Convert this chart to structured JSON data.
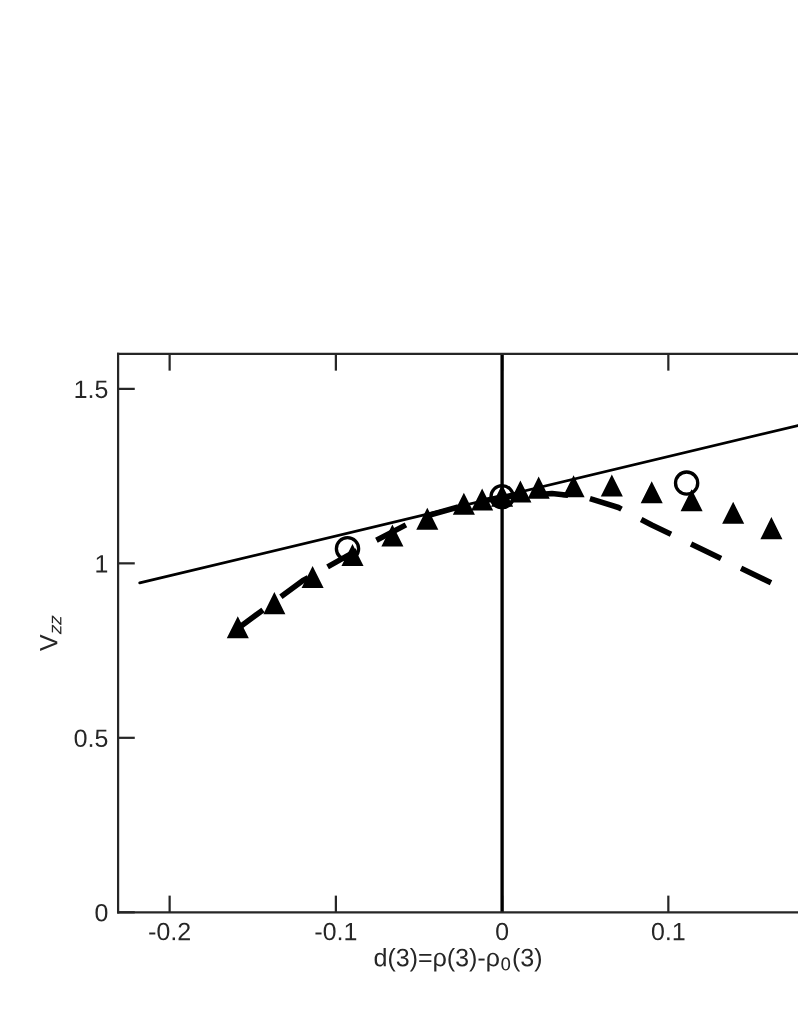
{
  "chart_data": {
    "type": "line",
    "xlabel": "d(3)=ρ(3)-ρ$_{0}$(3)",
    "ylabel": "V$_{zz}$",
    "xlim": [
      -0.231,
      0.178
    ],
    "ylim": [
      0,
      1.6
    ],
    "xticks": [
      -0.2,
      -0.1,
      0,
      0.1
    ],
    "yticks": [
      0,
      0.5,
      1,
      1.5
    ],
    "grid": false,
    "legend": false,
    "ref_lines": [
      {
        "axis": "x",
        "value": 0,
        "color": "#000000"
      }
    ],
    "series": [
      {
        "color": "#000000",
        "line_style": "solid",
        "marker": "none",
        "x": [
          -0.218,
          0.178
        ],
        "values": [
          0.944,
          1.395
        ]
      },
      {
        "color": "#000000",
        "line_style": "dashed",
        "marker": "none",
        "x": [
          -0.16,
          -0.12,
          -0.09,
          -0.05,
          -0.02,
          0,
          0.03,
          0.05,
          0.07,
          0.09,
          0.123,
          0.162
        ],
        "values": [
          0.81,
          0.95,
          1.03,
          1.13,
          1.17,
          1.19,
          1.2,
          1.19,
          1.16,
          1.11,
          1.034,
          0.944
        ]
      },
      {
        "type": "scatter",
        "color": "#000000",
        "marker": "triangle",
        "x": [
          -0.159,
          -0.137,
          -0.114,
          -0.09,
          -0.066,
          -0.045,
          -0.023,
          -0.012,
          0,
          0.011,
          0.022,
          0.043,
          0.066,
          0.09,
          0.114,
          0.139,
          0.162
        ],
        "values": [
          0.814,
          0.883,
          0.958,
          1.021,
          1.077,
          1.125,
          1.168,
          1.18,
          1.191,
          1.203,
          1.214,
          1.218,
          1.22,
          1.201,
          1.178,
          1.142,
          1.098
        ]
      },
      {
        "type": "scatter",
        "color": "#000000",
        "marker": "circle",
        "x": [
          -0.093,
          0,
          0.111
        ],
        "values": [
          1.042,
          1.191,
          1.23
        ]
      }
    ]
  }
}
